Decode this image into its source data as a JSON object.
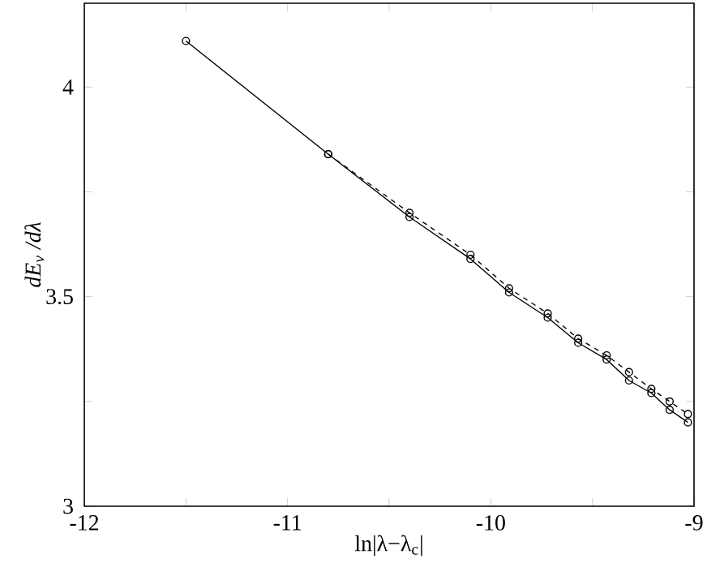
{
  "chart_data": {
    "type": "line",
    "xlabel": "ln|λ−λ$_{c}$|",
    "ylabel": "dE$_{v}$ /dλ",
    "xlim": [
      -12,
      -9
    ],
    "ylim": [
      3,
      4.2
    ],
    "xticks": [
      -12,
      {
        "value": -11.5,
        "label": null
      },
      -11,
      {
        "value": -10.5,
        "label": null
      },
      -10,
      {
        "value": -9.5,
        "label": null
      },
      -9
    ],
    "yticks": [
      3,
      {
        "value": 3.25,
        "label": null
      },
      3.5,
      {
        "value": 3.75,
        "label": null
      },
      4
    ],
    "grid": false,
    "marker": "circle",
    "series": [
      {
        "color": "#000000",
        "line_style": "solid",
        "x": [
          -11.5,
          -10.8,
          -10.4,
          -10.1,
          -9.91,
          -9.72,
          -9.57,
          -9.43,
          -9.32,
          -9.21,
          -9.12,
          -9.03
        ],
        "values": [
          4.11,
          3.84,
          3.69,
          3.59,
          3.51,
          3.45,
          3.39,
          3.35,
          3.3,
          3.27,
          3.23,
          3.2
        ]
      },
      {
        "color": "#000000",
        "line_style": "dashed",
        "x": [
          -10.8,
          -10.4,
          -10.1,
          -9.91,
          -9.72,
          -9.57,
          -9.43,
          -9.32,
          -9.21,
          -9.12,
          -9.03
        ],
        "values": [
          3.84,
          3.7,
          3.6,
          3.52,
          3.46,
          3.4,
          3.36,
          3.32,
          3.28,
          3.25,
          3.22
        ]
      }
    ]
  }
}
